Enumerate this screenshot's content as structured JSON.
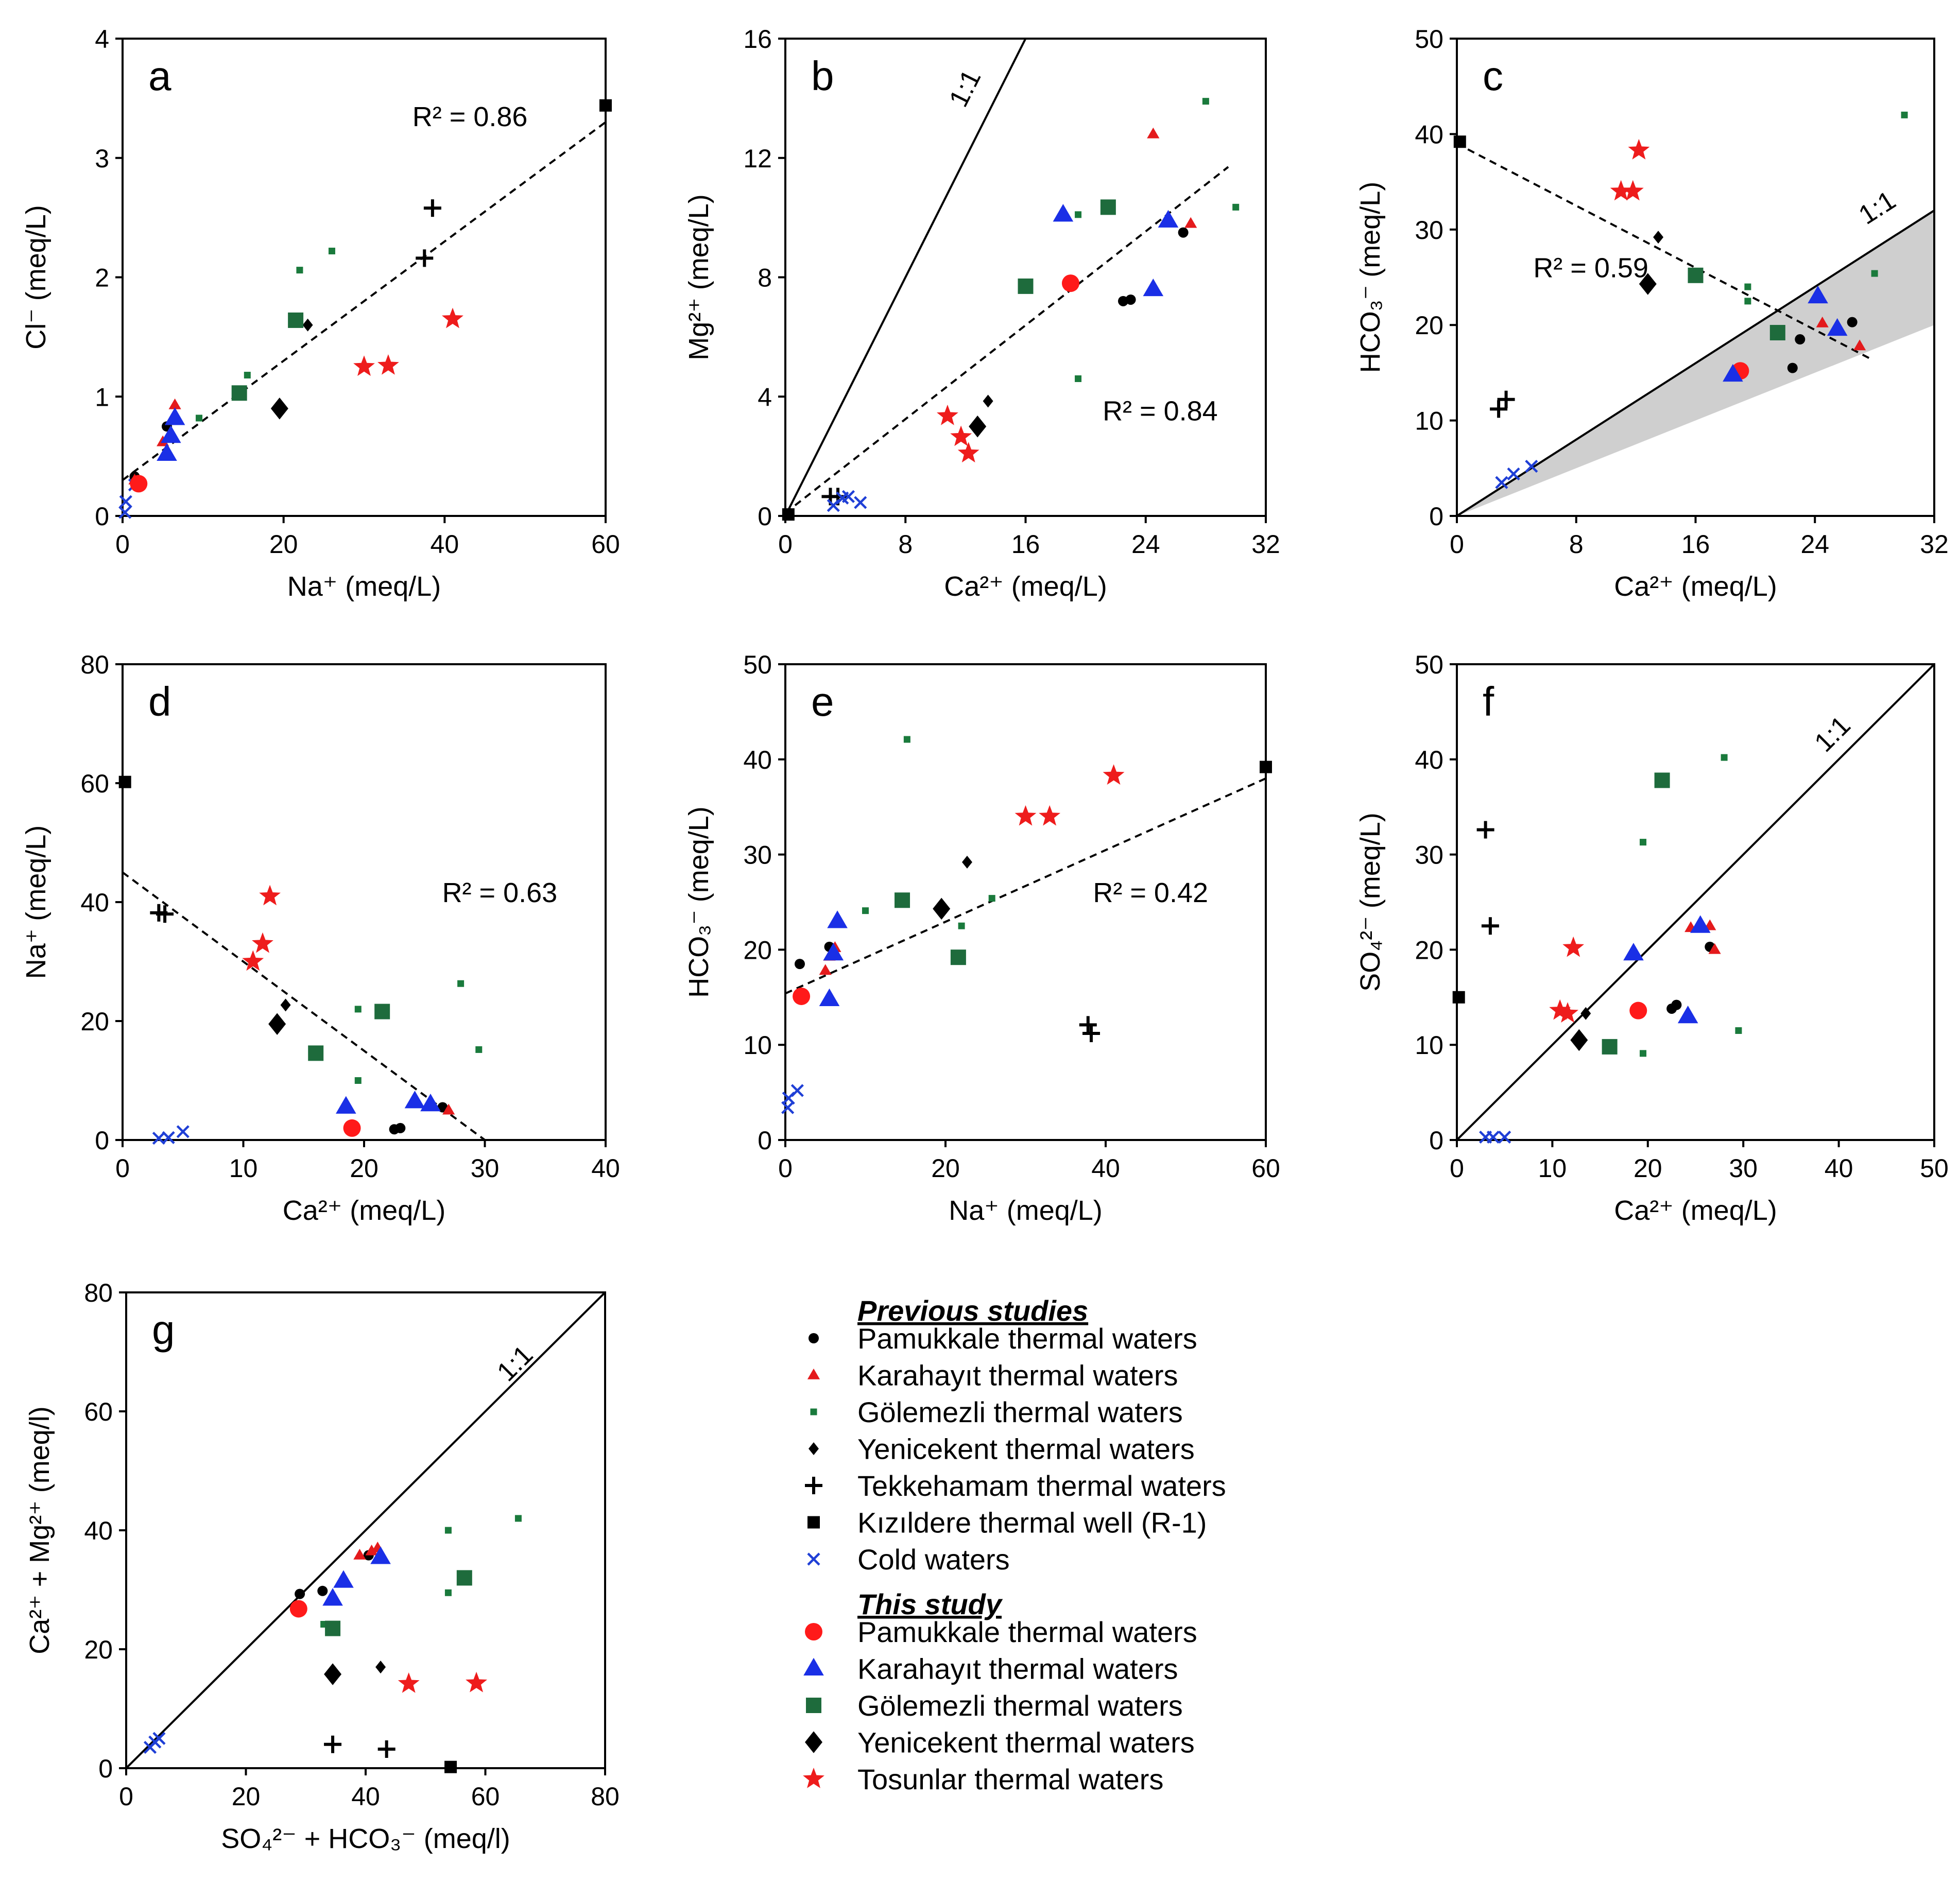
{
  "colors": {
    "pamukkale": "#000000",
    "karahayit": "#e41a1c",
    "golemezli": "#1a7a3c",
    "yenicekent": "#000000",
    "tekkehamam": "#000000",
    "kizildere": "#000000",
    "cold": "#1f3fd6",
    "this_pamukkale": "#ff1a1a",
    "this_karahayit": "#1a2fe6",
    "this_golemezli": "#1e6b3c",
    "this_yenicekent": "#000000",
    "this_tosunlar": "#ee1c1c",
    "shade": "#cfcfcf"
  },
  "legend": {
    "previous_heading": "Previous studies",
    "this_heading": "This study",
    "previous": [
      {
        "key": "pamukkale",
        "label": "Pamukkale thermal waters",
        "marker": "circle-small"
      },
      {
        "key": "karahayit",
        "label": "Karahayıt thermal waters",
        "marker": "triangle-small"
      },
      {
        "key": "golemezli",
        "label": "Gölemezli thermal waters",
        "marker": "square-small"
      },
      {
        "key": "yenicekent",
        "label": "Yenicekent thermal waters",
        "marker": "diamond-small"
      },
      {
        "key": "tekkehamam",
        "label": "Tekkehamam thermal waters",
        "marker": "plus"
      },
      {
        "key": "kizildere",
        "label": "Kızıldere thermal well (R-1)",
        "marker": "square-medium"
      },
      {
        "key": "cold",
        "label": "Cold waters",
        "marker": "cross"
      }
    ],
    "this": [
      {
        "key": "this_pamukkale",
        "label": "Pamukkale thermal waters",
        "marker": "circle-large"
      },
      {
        "key": "this_karahayit",
        "label": "Karahayıt thermal waters",
        "marker": "triangle-large"
      },
      {
        "key": "this_golemezli",
        "label": "Gölemezli thermal waters",
        "marker": "square-large"
      },
      {
        "key": "this_yenicekent",
        "label": "Yenicekent thermal waters",
        "marker": "diamond-large"
      },
      {
        "key": "this_tosunlar",
        "label": "Tosunlar thermal waters",
        "marker": "star"
      }
    ]
  },
  "chart_data": [
    {
      "id": "a",
      "type": "scatter",
      "letter": "a",
      "xlabel": "Na⁺ (meq/L)",
      "ylabel": "Cl⁻ (meq/L)",
      "xlim": [
        0,
        60
      ],
      "ylim": [
        0,
        4
      ],
      "xticks": [
        0,
        20,
        40,
        60
      ],
      "yticks": [
        0,
        1,
        2,
        3,
        4
      ],
      "r2": "R² = 0.86",
      "fit": [
        [
          0,
          0.3
        ],
        [
          60,
          3.3
        ]
      ],
      "series": {
        "pamukkale": [
          [
            1.5,
            0.33
          ],
          [
            5.5,
            0.75
          ]
        ],
        "karahayit": [
          [
            6.5,
            0.93
          ],
          [
            5.0,
            0.62
          ],
          [
            1.5,
            0.3
          ]
        ],
        "golemezli": [
          [
            9.5,
            0.82
          ],
          [
            15.5,
            1.18
          ],
          [
            22,
            2.06
          ],
          [
            26,
            2.22
          ]
        ],
        "yenicekent": [
          [
            23,
            1.6
          ]
        ],
        "tekkehamam": [
          [
            38.5,
            2.58
          ],
          [
            37.5,
            2.16
          ]
        ],
        "kizildere": [
          [
            60,
            3.44
          ]
        ],
        "cold": [
          [
            0.3,
            0.03
          ],
          [
            0.4,
            0.12
          ],
          [
            1.5,
            0.26
          ]
        ],
        "this_pamukkale": [
          [
            2,
            0.27
          ]
        ],
        "this_karahayit": [
          [
            6.5,
            0.82
          ],
          [
            6,
            0.67
          ],
          [
            5.5,
            0.52
          ]
        ],
        "this_golemezli": [
          [
            14.5,
            1.03
          ],
          [
            21.5,
            1.64
          ]
        ],
        "this_yenicekent": [
          [
            19.5,
            0.9
          ]
        ],
        "this_tosunlar": [
          [
            30,
            1.25
          ],
          [
            33,
            1.26
          ],
          [
            41,
            1.65
          ]
        ]
      }
    },
    {
      "id": "b",
      "type": "scatter",
      "letter": "b",
      "xlabel": "Ca²⁺ (meq/L)",
      "ylabel": "Mg²⁺ (meq/L)",
      "xlim": [
        0,
        32
      ],
      "ylim": [
        0,
        16
      ],
      "xticks": [
        0,
        8,
        16,
        24,
        32
      ],
      "yticks": [
        0,
        4,
        8,
        12,
        16
      ],
      "r2": "R² = 0.84",
      "oneone": "1:1",
      "oneone_pos": [
        12.5,
        14.2
      ],
      "fit": [
        [
          0,
          0.1
        ],
        [
          29.5,
          11.7
        ]
      ],
      "series": {
        "pamukkale": [
          [
            22.5,
            7.2
          ],
          [
            23,
            7.25
          ],
          [
            26.5,
            9.5
          ]
        ],
        "karahayit": [
          [
            24.5,
            12.8
          ],
          [
            27,
            9.8
          ]
        ],
        "golemezli": [
          [
            19.5,
            10.1
          ],
          [
            28,
            13.9
          ],
          [
            19.5,
            4.6
          ],
          [
            30,
            10.35
          ]
        ],
        "yenicekent": [
          [
            13.5,
            3.85
          ]
        ],
        "tekkehamam": [
          [
            3,
            0.65
          ],
          [
            3.5,
            0.65
          ]
        ],
        "kizildere": [
          [
            0.2,
            0.05
          ]
        ],
        "cold": [
          [
            3.2,
            0.35
          ],
          [
            3.8,
            0.6
          ],
          [
            4.2,
            0.65
          ],
          [
            5,
            0.45
          ]
        ],
        "this_pamukkale": [
          [
            19,
            7.8
          ]
        ],
        "this_karahayit": [
          [
            18.5,
            10.1
          ],
          [
            25.5,
            9.9
          ],
          [
            24.5,
            7.6
          ]
        ],
        "this_golemezli": [
          [
            16,
            7.7
          ],
          [
            21.5,
            10.35
          ]
        ],
        "this_yenicekent": [
          [
            12.8,
            3.0
          ]
        ],
        "this_tosunlar": [
          [
            10.8,
            3.35
          ],
          [
            11.7,
            2.65
          ],
          [
            12.2,
            2.1
          ]
        ]
      }
    },
    {
      "id": "c",
      "type": "scatter",
      "letter": "c",
      "xlabel": "Ca²⁺ (meq/L)",
      "ylabel": "HCO₃⁻ (meq/L)",
      "xlim": [
        0,
        32
      ],
      "ylim": [
        0,
        50
      ],
      "xticks": [
        0,
        8,
        16,
        24,
        32
      ],
      "yticks": [
        0,
        10,
        20,
        30,
        40,
        50
      ],
      "r2": "R² = 0.59",
      "oneone": "1:1",
      "oneone_pos": [
        28.5,
        31.5
      ],
      "fit": [
        [
          0,
          39
        ],
        [
          27.8,
          16.4
        ]
      ],
      "shade": true,
      "series": {
        "pamukkale": [
          [
            22.5,
            15.5
          ],
          [
            23,
            18.5
          ],
          [
            26.5,
            20.3
          ]
        ],
        "karahayit": [
          [
            24.5,
            20.2
          ],
          [
            27,
            17.8
          ]
        ],
        "golemezli": [
          [
            19.5,
            22.5
          ],
          [
            19.5,
            24
          ],
          [
            28,
            25.4
          ],
          [
            30,
            42
          ]
        ],
        "yenicekent": [
          [
            13.5,
            29.2
          ]
        ],
        "tekkehamam": [
          [
            2.8,
            11.2
          ],
          [
            3.3,
            12.2
          ]
        ],
        "kizildere": [
          [
            0.2,
            39.2
          ]
        ],
        "cold": [
          [
            3,
            3.5
          ],
          [
            3.8,
            4.4
          ],
          [
            5,
            5.2
          ]
        ],
        "this_pamukkale": [
          [
            19,
            15.2
          ]
        ],
        "this_karahayit": [
          [
            18.5,
            14.8
          ],
          [
            24.2,
            23
          ],
          [
            25.5,
            19.6
          ]
        ],
        "this_golemezli": [
          [
            16,
            25.2
          ],
          [
            21.5,
            19.2
          ]
        ],
        "this_yenicekent": [
          [
            12.8,
            24.3
          ]
        ],
        "this_tosunlar": [
          [
            11,
            34
          ],
          [
            11.8,
            34
          ],
          [
            12.2,
            38.3
          ]
        ]
      }
    },
    {
      "id": "d",
      "type": "scatter",
      "letter": "d",
      "xlabel": "Ca²⁺ (meq/L)",
      "ylabel": "Na⁺ (meq/L)",
      "xlim": [
        0,
        40
      ],
      "ylim": [
        0,
        80
      ],
      "xticks": [
        0,
        10,
        20,
        30,
        40
      ],
      "yticks": [
        0,
        20,
        40,
        60,
        80
      ],
      "r2": "R² = 0.63",
      "fit": [
        [
          0,
          45
        ],
        [
          30,
          0
        ]
      ],
      "series": {
        "pamukkale": [
          [
            22.5,
            1.8
          ],
          [
            23,
            2
          ],
          [
            26.5,
            5.5
          ]
        ],
        "karahayit": [
          [
            27,
            5.0
          ]
        ],
        "golemezli": [
          [
            19.5,
            22
          ],
          [
            19.5,
            10
          ],
          [
            28,
            26.3
          ],
          [
            29.5,
            15.2
          ]
        ],
        "yenicekent": [
          [
            13.5,
            22.7
          ]
        ],
        "tekkehamam": [
          [
            3,
            38.2
          ],
          [
            3.5,
            38
          ]
        ],
        "kizildere": [
          [
            0.2,
            60.2
          ]
        ],
        "cold": [
          [
            3,
            0.3
          ],
          [
            3.8,
            0.4
          ],
          [
            5,
            1.4
          ]
        ],
        "this_pamukkale": [
          [
            19,
            2.0
          ]
        ],
        "this_karahayit": [
          [
            18.5,
            5.6
          ],
          [
            24.2,
            6.5
          ],
          [
            25.5,
            6.0
          ]
        ],
        "this_golemezli": [
          [
            16,
            14.6
          ],
          [
            21.5,
            21.6
          ]
        ],
        "this_yenicekent": [
          [
            12.8,
            19.5
          ]
        ],
        "this_tosunlar": [
          [
            10.8,
            30
          ],
          [
            11.6,
            33
          ],
          [
            12.2,
            41
          ]
        ]
      }
    },
    {
      "id": "e",
      "type": "scatter",
      "letter": "e",
      "xlabel": "Na⁺ (meq/L)",
      "ylabel": "HCO₃⁻ (meq/L)",
      "xlim": [
        0,
        60
      ],
      "ylim": [
        0,
        50
      ],
      "xticks": [
        0,
        20,
        40,
        60
      ],
      "yticks": [
        0,
        10,
        20,
        30,
        40,
        50
      ],
      "r2": "R² = 0.42",
      "fit": [
        [
          0,
          15.4
        ],
        [
          60,
          38
        ]
      ],
      "series": {
        "pamukkale": [
          [
            1.8,
            18.5
          ],
          [
            5.5,
            20.3
          ]
        ],
        "karahayit": [
          [
            5,
            17.8
          ],
          [
            5.5,
            19.3
          ],
          [
            6.2,
            20.2
          ]
        ],
        "golemezli": [
          [
            10,
            24.1
          ],
          [
            15.2,
            42.1
          ],
          [
            22,
            22.5
          ],
          [
            25.8,
            25.4
          ]
        ],
        "yenicekent": [
          [
            22.7,
            29.2
          ]
        ],
        "tekkehamam": [
          [
            38.2,
            11.2
          ],
          [
            37.8,
            12.1
          ]
        ],
        "kizildere": [
          [
            60,
            39.2
          ]
        ],
        "cold": [
          [
            0.3,
            3.4
          ],
          [
            0.4,
            4.4
          ],
          [
            1.5,
            5.2
          ]
        ],
        "this_pamukkale": [
          [
            2,
            15.1
          ]
        ],
        "this_karahayit": [
          [
            6.5,
            23
          ],
          [
            6,
            19.6
          ],
          [
            5.5,
            14.8
          ]
        ],
        "this_golemezli": [
          [
            14.6,
            25.2
          ],
          [
            21.6,
            19.2
          ]
        ],
        "this_yenicekent": [
          [
            19.5,
            24.3
          ]
        ],
        "this_tosunlar": [
          [
            30,
            34
          ],
          [
            33,
            34
          ],
          [
            41,
            38.3
          ]
        ]
      }
    },
    {
      "id": "f",
      "type": "scatter",
      "letter": "f",
      "xlabel": "Ca²⁺ (meq/L)",
      "ylabel": "SO₄²⁻ (meq/L)",
      "xlim": [
        0,
        50
      ],
      "ylim": [
        0,
        50
      ],
      "xticks": [
        0,
        10,
        20,
        30,
        40,
        50
      ],
      "yticks": [
        0,
        10,
        20,
        30,
        40,
        50
      ],
      "oneone": "1:1",
      "oneone_pos": [
        40,
        42
      ],
      "diag": true,
      "series": {
        "pamukkale": [
          [
            22.5,
            13.8
          ],
          [
            23,
            14.2
          ],
          [
            26.5,
            20.3
          ]
        ],
        "karahayit": [
          [
            24.5,
            22.3
          ],
          [
            26.5,
            22.5
          ],
          [
            27,
            20
          ]
        ],
        "golemezli": [
          [
            19.5,
            9.1
          ],
          [
            19.5,
            31.3
          ],
          [
            28,
            40.2
          ],
          [
            29.5,
            11.5
          ]
        ],
        "yenicekent": [
          [
            13.5,
            13.3
          ]
        ],
        "tekkehamam": [
          [
            3,
            32.6
          ],
          [
            3.5,
            22.5
          ]
        ],
        "kizildere": [
          [
            0.2,
            15
          ]
        ],
        "cold": [
          [
            3,
            0.3
          ],
          [
            3.8,
            0.3
          ],
          [
            5,
            0.3
          ]
        ],
        "this_pamukkale": [
          [
            19,
            13.6
          ]
        ],
        "this_karahayit": [
          [
            18.5,
            19.6
          ],
          [
            24.2,
            13
          ],
          [
            25.5,
            22.5
          ]
        ],
        "this_golemezli": [
          [
            16,
            9.8
          ],
          [
            21.5,
            37.8
          ]
        ],
        "this_yenicekent": [
          [
            12.8,
            10.5
          ]
        ],
        "this_tosunlar": [
          [
            10.8,
            13.6
          ],
          [
            11.6,
            13.3
          ],
          [
            12.2,
            20.2
          ]
        ]
      }
    },
    {
      "id": "g",
      "type": "scatter",
      "letter": "g",
      "xlabel": "SO₄²⁻ + HCO₃⁻ (meq/l)",
      "ylabel": "Ca²⁺ + Mg²⁺ (meq/l)",
      "xlim": [
        0,
        80
      ],
      "ylim": [
        0,
        80
      ],
      "xticks": [
        0,
        20,
        40,
        60,
        80
      ],
      "yticks": [
        0,
        20,
        40,
        60,
        80
      ],
      "oneone": "1:1",
      "oneone_pos": [
        66,
        67
      ],
      "diag": true,
      "series": {
        "pamukkale": [
          [
            29,
            29.3
          ],
          [
            32.8,
            29.8
          ],
          [
            40.5,
            35.8
          ]
        ],
        "karahayit": [
          [
            39,
            35.8
          ],
          [
            41,
            36.5
          ],
          [
            42,
            37
          ]
        ],
        "golemezli": [
          [
            33,
            24.2
          ],
          [
            53.8,
            29.5
          ],
          [
            53.8,
            40
          ],
          [
            65.5,
            42
          ]
        ],
        "yenicekent": [
          [
            42.5,
            17
          ]
        ],
        "tekkehamam": [
          [
            34.5,
            4
          ],
          [
            43.5,
            3.2
          ]
        ],
        "kizildere": [
          [
            54.2,
            0.2
          ]
        ],
        "cold": [
          [
            4,
            3.5
          ],
          [
            4.8,
            4.4
          ],
          [
            5.5,
            5
          ]
        ],
        "this_pamukkale": [
          [
            28.8,
            26.8
          ]
        ],
        "this_karahayit": [
          [
            34.5,
            28.5
          ],
          [
            36.3,
            31.5
          ],
          [
            42.5,
            35.5
          ]
        ],
        "this_golemezli": [
          [
            34.5,
            23.5
          ],
          [
            56.5,
            32
          ]
        ],
        "this_yenicekent": [
          [
            34.5,
            15.8
          ]
        ],
        "this_tosunlar": [
          [
            47.2,
            14.2
          ],
          [
            58.5,
            14.3
          ]
        ]
      }
    }
  ]
}
